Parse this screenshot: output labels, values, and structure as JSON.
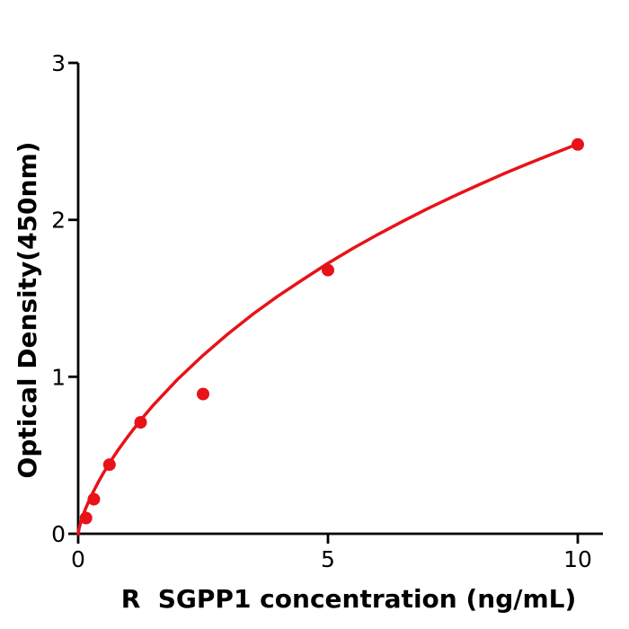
{
  "window": {
    "background": "#ffffff"
  },
  "chart_data": {
    "type": "scatter",
    "title": "",
    "xlabel": "R  SGPP1 concentration (ng/mL)",
    "ylabel": "Optical Density(450nm)",
    "xlim": [
      0,
      10.5
    ],
    "ylim": [
      0,
      3
    ],
    "x_ticks": [
      0,
      5,
      10
    ],
    "y_ticks": [
      0,
      1,
      2,
      3
    ],
    "grid": false,
    "legend": "none",
    "point_color": "#e81219",
    "curve_color": "#e81219",
    "axis_color": "#000000",
    "series": [
      {
        "name": "standard-points",
        "type": "scatter",
        "x": [
          0.156,
          0.3125,
          0.625,
          1.25,
          2.5,
          5,
          10
        ],
        "y": [
          0.1,
          0.22,
          0.44,
          0.71,
          0.89,
          1.68,
          2.48
        ]
      },
      {
        "name": "fitted-curve",
        "type": "line",
        "x": [
          0,
          0.02,
          0.05,
          0.1,
          0.15,
          0.2,
          0.3,
          0.4,
          0.5,
          0.65,
          0.8,
          1,
          1.25,
          1.5,
          2,
          2.5,
          3,
          3.5,
          4,
          4.5,
          5,
          5.5,
          6,
          6.5,
          7,
          7.5,
          8,
          8.5,
          9,
          9.5,
          10
        ],
        "y": [
          0,
          0.036,
          0.071,
          0.119,
          0.161,
          0.198,
          0.266,
          0.327,
          0.384,
          0.462,
          0.534,
          0.622,
          0.724,
          0.818,
          0.987,
          1.137,
          1.274,
          1.4,
          1.515,
          1.62,
          1.723,
          1.818,
          1.907,
          1.991,
          2.072,
          2.148,
          2.221,
          2.291,
          2.357,
          2.421,
          2.483
        ]
      }
    ]
  }
}
